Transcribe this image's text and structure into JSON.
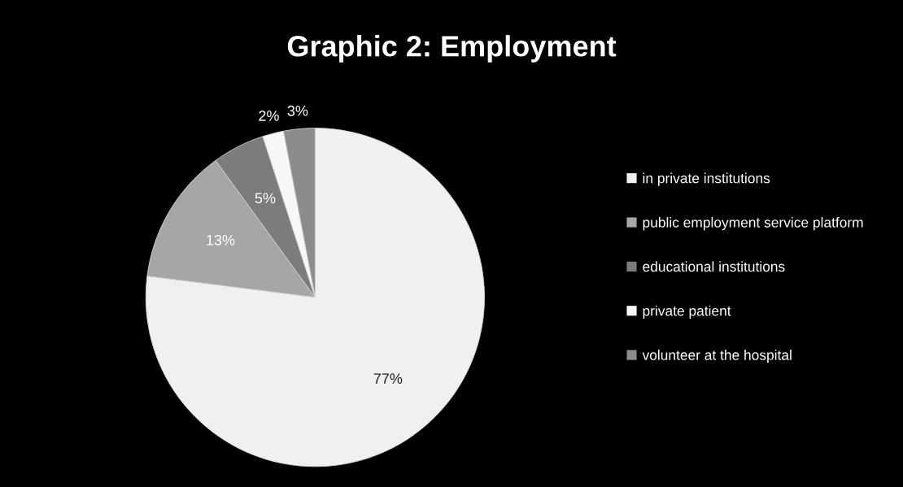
{
  "chart_data": {
    "type": "pie",
    "title": "Graphic 2: Employment",
    "categories": [
      "in private institutions",
      "public employment service platform",
      "educational institutions",
      "private patient",
      "volunteer at the hospital"
    ],
    "values": [
      77,
      13,
      5,
      2,
      3
    ],
    "colors": [
      "#f0f0f0",
      "#a6a6a6",
      "#7c7c7c",
      "#f7f7f7",
      "#8c8c8c"
    ],
    "value_labels": [
      "77%",
      "13%",
      "5%",
      "2%",
      "3%"
    ],
    "legend": "right"
  }
}
